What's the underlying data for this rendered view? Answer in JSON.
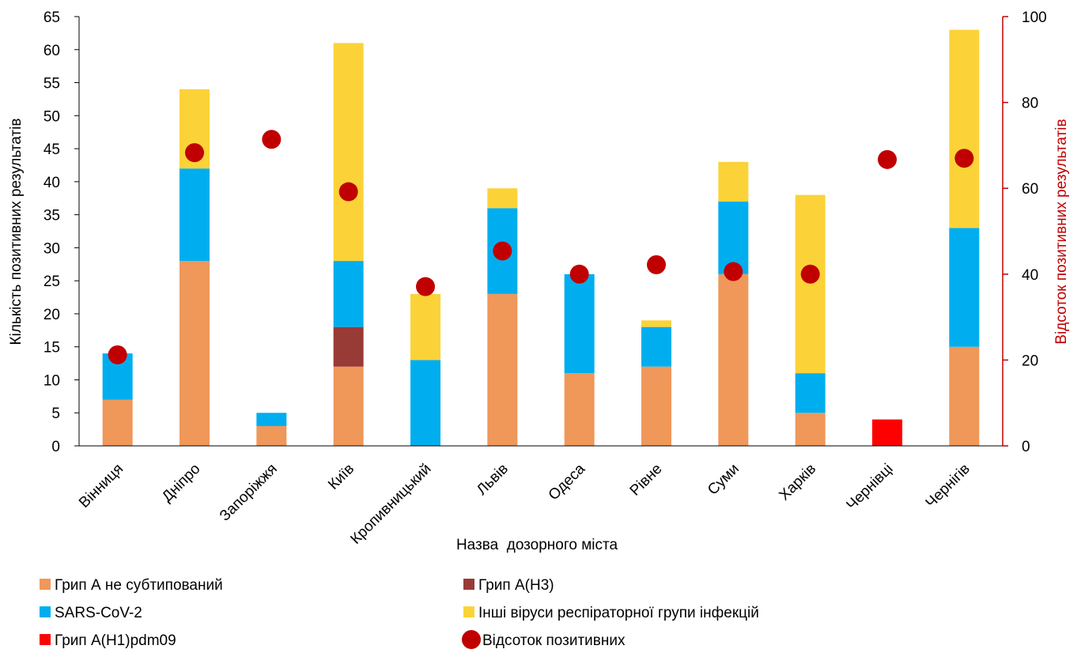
{
  "chart_data": {
    "type": "bar",
    "stacked": true,
    "xlabel": "Назва  дозорного міста",
    "ylabel": "Кількість позитивних результатів",
    "y2label": "Відсоток позитивних результатів",
    "ylim": [
      0,
      65
    ],
    "y2lim": [
      0,
      100
    ],
    "yticks": [
      0,
      5,
      10,
      15,
      20,
      25,
      30,
      35,
      40,
      45,
      50,
      55,
      60,
      65
    ],
    "y2ticks": [
      0,
      20,
      40,
      60,
      80,
      100
    ],
    "categories": [
      "Вінниця",
      "Дніпро",
      "Запоріжжя",
      "Київ",
      "Кропивницький",
      "Львів",
      "Одеса",
      "Рівне",
      "Суми",
      "Харків",
      "Чернівці",
      "Чернігів"
    ],
    "series": [
      {
        "name": "Грип А не субтипований",
        "color": "#F0975A",
        "values": [
          7,
          28,
          3,
          12,
          0,
          23,
          11,
          12,
          26,
          5,
          0,
          15
        ]
      },
      {
        "name": "Грип А(Н3)",
        "color": "#983A35",
        "values": [
          0,
          0,
          0,
          6,
          0,
          0,
          0,
          0,
          0,
          0,
          0,
          0
        ]
      },
      {
        "name": "SARS-CoV-2",
        "color": "#00AEEF",
        "values": [
          7,
          14,
          2,
          10,
          13,
          13,
          15,
          6,
          11,
          6,
          0,
          18
        ]
      },
      {
        "name": "Інші віруси респіраторної групи інфекцій",
        "color": "#FBD338",
        "values": [
          0,
          12,
          0,
          33,
          10,
          3,
          0,
          1,
          6,
          27,
          0,
          30
        ]
      },
      {
        "name": "Грип А(Н1)pdm09",
        "color": "#FF0000",
        "values": [
          0,
          0,
          0,
          0,
          0,
          0,
          0,
          0,
          0,
          0,
          4,
          0
        ]
      }
    ],
    "line_series": {
      "name": "Відсоток позитивних",
      "type": "scatter",
      "axis": "right",
      "color": "#C00000",
      "values": [
        21.2,
        68.3,
        71.4,
        59.2,
        37.1,
        45.4,
        40.0,
        42.2,
        40.6,
        40.0,
        66.7,
        67.0
      ]
    },
    "legend_position": "bottom"
  }
}
